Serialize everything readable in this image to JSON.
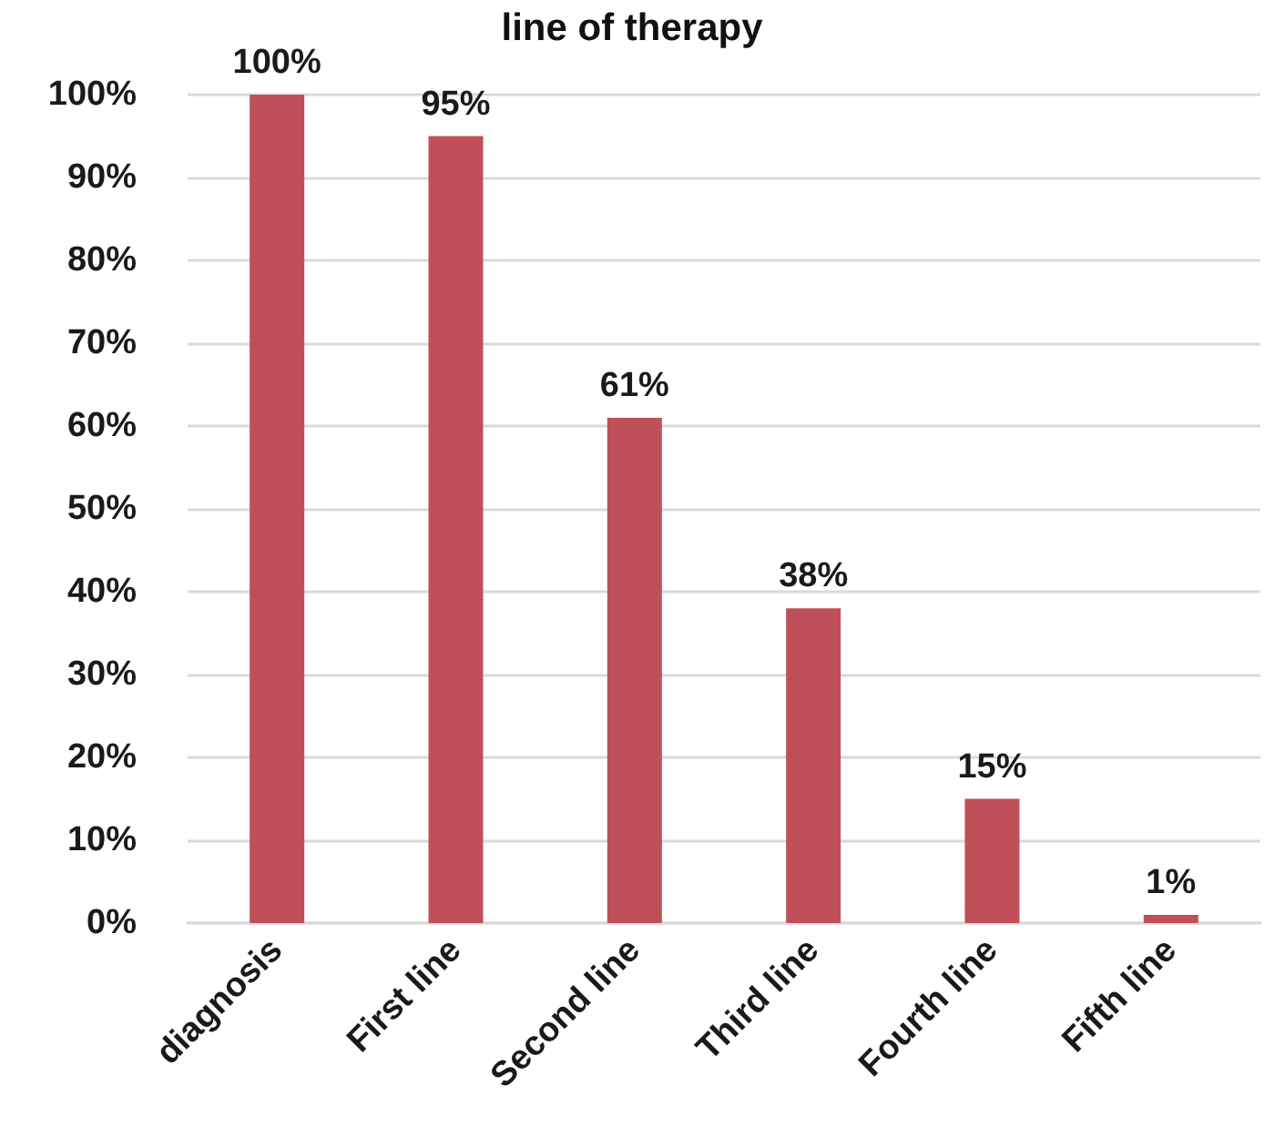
{
  "chart_data": {
    "type": "bar",
    "title": "line of therapy",
    "categories": [
      "diagnosis",
      "First line",
      "Second line",
      "Third line",
      "Fourth line",
      "Fifth line"
    ],
    "values": [
      100,
      95,
      61,
      38,
      15,
      1
    ],
    "color": "#bf4f59",
    "value_labels": [
      "100%",
      "95%",
      "61%",
      "38%",
      "15%",
      "1%"
    ],
    "ylim": [
      0,
      100
    ],
    "yticks": [
      {
        "value": 0,
        "label": "0%"
      },
      {
        "value": 10,
        "label": "10%"
      },
      {
        "value": 20,
        "label": "20%"
      },
      {
        "value": 30,
        "label": "30%"
      },
      {
        "value": 40,
        "label": "40%"
      },
      {
        "value": 50,
        "label": "50%"
      },
      {
        "value": 60,
        "label": "60%"
      },
      {
        "value": 70,
        "label": "70%"
      },
      {
        "value": 80,
        "label": "80%"
      },
      {
        "value": 90,
        "label": "90%"
      },
      {
        "value": 100,
        "label": "100%"
      }
    ],
    "grid": "y"
  }
}
